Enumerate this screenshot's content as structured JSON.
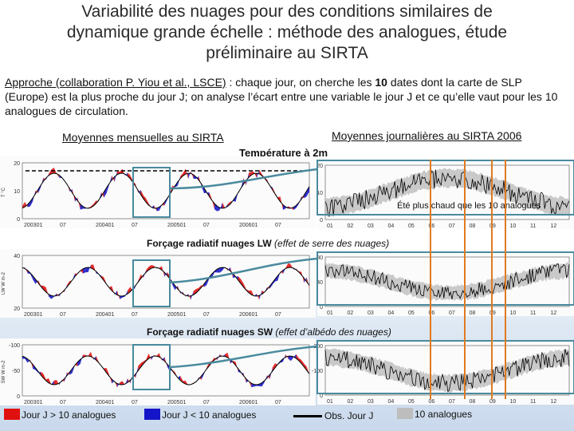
{
  "title": {
    "line1": "Variabilité des nuages pour des conditions similaires de",
    "line2": "dynamique grande échelle : méthode des analogues, étude",
    "line3": "préliminaire au SIRTA"
  },
  "intro": {
    "approach": "Approche (collaboration P. Yiou et al., LSCE)",
    "part1": " : chaque jour, on cherche les ",
    "count": "10",
    "part2": " dates dont la carte de SLP (Europe) est la plus proche du jour J; on analyse l’écart entre une variable le jour J et ce qu’elle vaut pour les 10 analogues de circulation."
  },
  "labels": {
    "monthly": "Moyennes mensuelles au SIRTA",
    "daily": "Moyennes journalières au SIRTA 2006",
    "temperature": "Température à 2m",
    "warm_note": "Été plus chaud que les 10 analogues",
    "lw_bold": "Forçage radiatif nuages LW",
    "lw_italic": " (effet de serre des nuages)",
    "sw_bold": "Forçage radiatif nuages SW",
    "sw_italic": " (effet d’albédo des nuages)"
  },
  "panels": {
    "temp_monthly": {
      "yticks": [
        "20",
        "10",
        "0"
      ],
      "ylabel": "T °C",
      "xticks": [
        "200301",
        "07",
        "200401",
        "07",
        "200501",
        "07",
        "200601",
        "07"
      ]
    },
    "temp_daily": {
      "yticks": [
        "20",
        "10",
        "0"
      ],
      "xticks": [
        "01",
        "02",
        "03",
        "04",
        "05",
        "06",
        "07",
        "08",
        "09",
        "10",
        "11",
        "12"
      ]
    },
    "lw_monthly": {
      "yticks": [
        "40",
        "20"
      ],
      "ylabel": "LW W m-2",
      "xticks": [
        "200301",
        "07",
        "200401",
        "07",
        "200501",
        "07",
        "200601",
        "07"
      ]
    },
    "lw_daily": {
      "yticks": [
        "80",
        "40",
        "0"
      ],
      "xticks": [
        "01",
        "02",
        "03",
        "04",
        "05",
        "06",
        "07",
        "08",
        "09",
        "10",
        "11",
        "12"
      ]
    },
    "sw_monthly": {
      "yticks": [
        "-100",
        "-50",
        "0"
      ],
      "ylabel": "SW W m-2",
      "xticks": [
        "200301",
        "07",
        "200401",
        "07",
        "200501",
        "07",
        "200601",
        "07"
      ]
    },
    "sw_daily": {
      "yticks": [
        "-200",
        "-100",
        "0"
      ],
      "xticks": [
        "01",
        "02",
        "03",
        "04",
        "05",
        "06",
        "07",
        "08",
        "09",
        "10",
        "11",
        "12"
      ]
    }
  },
  "legend": {
    "warmer": "Jour J > 10 analogues",
    "cooler": "Jour J < 10 analogues",
    "obs": "Obs. Jour J",
    "analogs": "10 analogues"
  },
  "colors": {
    "warmer": "#e01010",
    "cooler": "#1414c8",
    "obs": "#000000",
    "analogs": "#bdbdbd",
    "highlight": "#e07a20",
    "frame": "#4a8a9e"
  }
}
